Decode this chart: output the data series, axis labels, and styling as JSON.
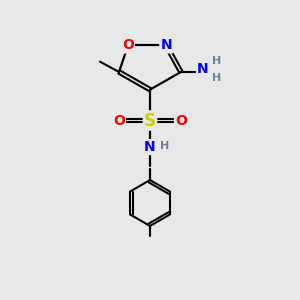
{
  "bg_color": "#e8e8e8",
  "atom_colors": {
    "O": "#ff0000",
    "N": "#0000ff",
    "S": "#cccc00",
    "C": "#000000",
    "H": "#708090"
  },
  "figsize": [
    3.0,
    3.0
  ],
  "dpi": 100
}
